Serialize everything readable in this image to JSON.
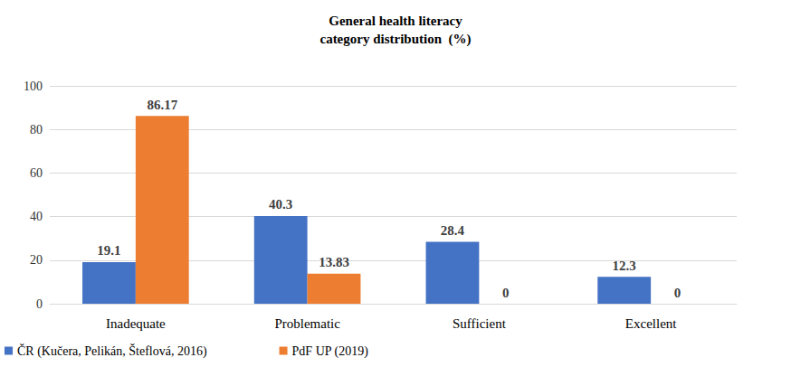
{
  "chart_data": {
    "type": "bar",
    "title": "General health literacy\ncategory distribution  (%)",
    "categories": [
      "Inadequate",
      "Problematic",
      "Sufficient",
      "Excellent"
    ],
    "series": [
      {
        "name": "ČR (Kučera, Pelikán, Šteflová, 2016)",
        "color": "#4472c4",
        "values": [
          19.1,
          40.3,
          28.4,
          12.3
        ]
      },
      {
        "name": "PdF UP (2019)",
        "color": "#ed7d31",
        "values": [
          86.17,
          13.83,
          0,
          0
        ]
      }
    ],
    "ylim": [
      0,
      100
    ],
    "yticks": [
      0,
      20,
      40,
      60,
      80,
      100
    ],
    "grid": true,
    "legend": "bottom",
    "data_labels": true
  }
}
